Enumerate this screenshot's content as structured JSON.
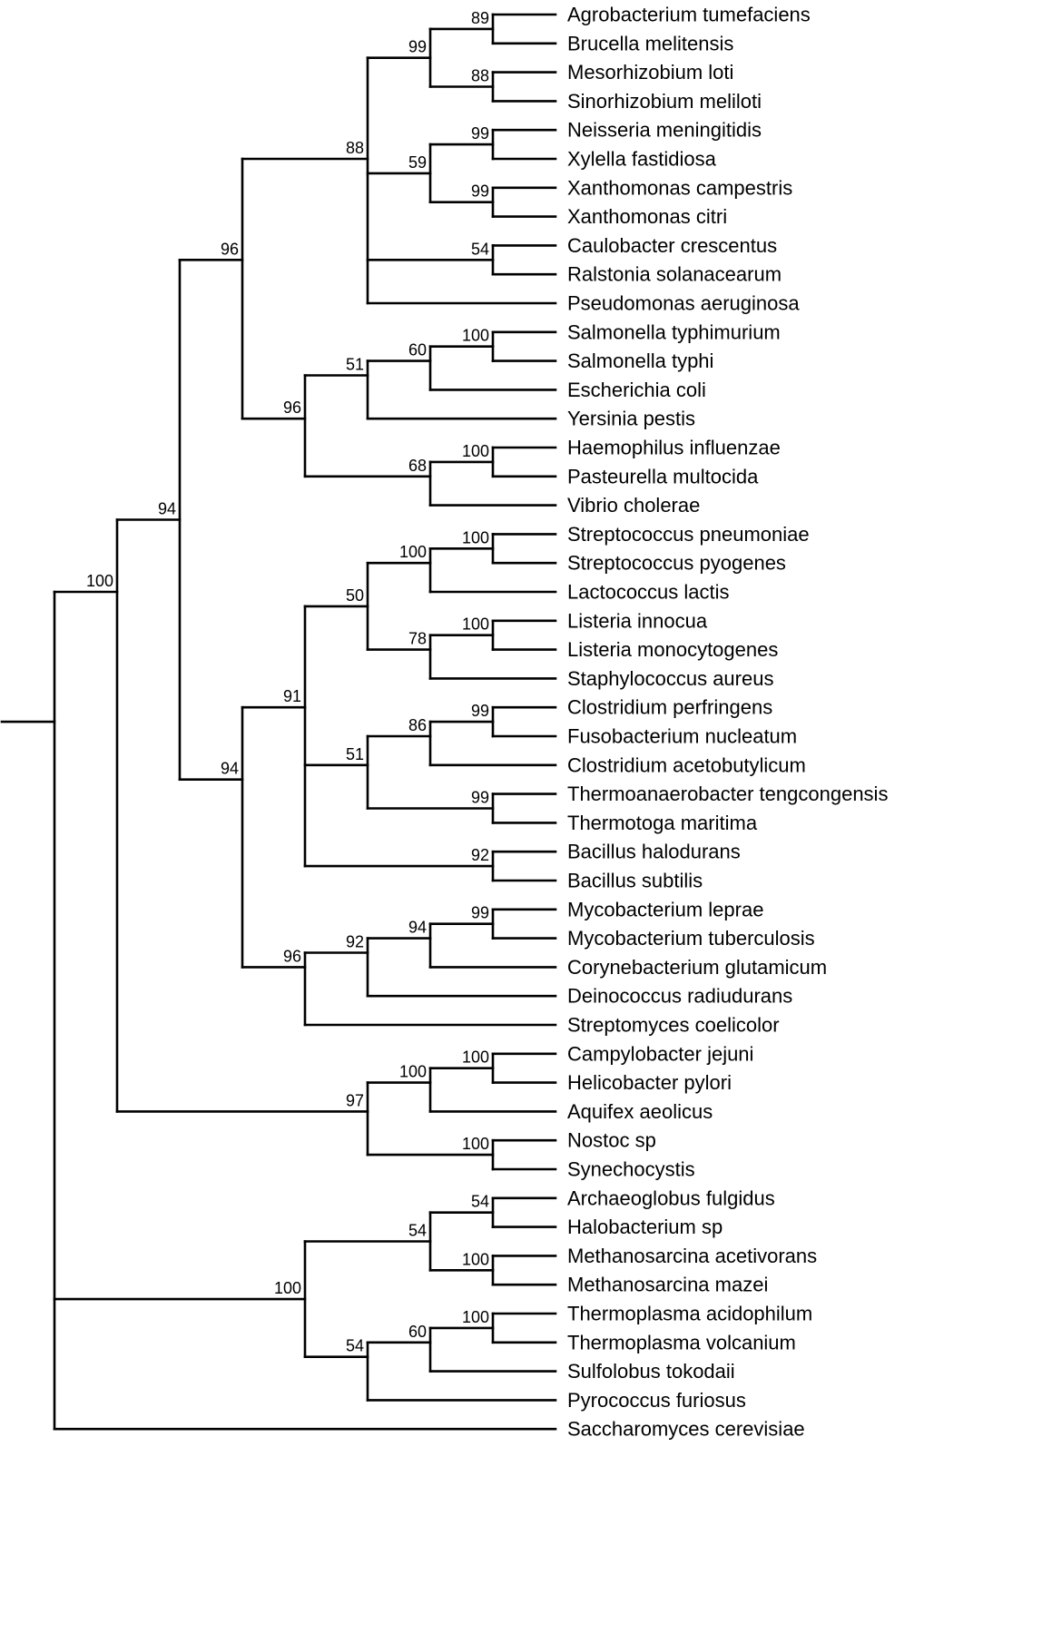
{
  "figure": {
    "type": "phylogenetic_tree",
    "background_color": "#ffffff",
    "line_color": "#000000",
    "text_color": "#000000"
  },
  "tree": {
    "children": [
      {
        "support": "100",
        "children": [
          {
            "support": "94",
            "children": [
              {
                "support": "96",
                "children": [
                  {
                    "support": "88",
                    "children": [
                      {
                        "support": "99",
                        "children": [
                          {
                            "support": "89",
                            "children": [
                              {
                                "name": "Agrobacterium tumefaciens"
                              },
                              {
                                "name": "Brucella melitensis"
                              }
                            ]
                          },
                          {
                            "support": "88",
                            "children": [
                              {
                                "name": "Mesorhizobium loti"
                              },
                              {
                                "name": "Sinorhizobium meliloti"
                              }
                            ]
                          }
                        ]
                      },
                      {
                        "support": "59",
                        "children": [
                          {
                            "support": "99",
                            "children": [
                              {
                                "name": "Neisseria meningitidis"
                              },
                              {
                                "name": "Xylella fastidiosa"
                              }
                            ]
                          },
                          {
                            "support": "99",
                            "children": [
                              {
                                "name": "Xanthomonas campestris"
                              },
                              {
                                "name": "Xanthomonas citri"
                              }
                            ]
                          }
                        ]
                      },
                      {
                        "support": "54",
                        "children": [
                          {
                            "name": "Caulobacter crescentus"
                          },
                          {
                            "name": "Ralstonia solanacearum"
                          }
                        ]
                      },
                      {
                        "name": "Pseudomonas aeruginosa"
                      }
                    ]
                  },
                  {
                    "support": "96",
                    "children": [
                      {
                        "support": "51",
                        "children": [
                          {
                            "support": "60",
                            "children": [
                              {
                                "support": "100",
                                "children": [
                                  {
                                    "name": "Salmonella typhimurium"
                                  },
                                  {
                                    "name": "Salmonella typhi"
                                  }
                                ]
                              },
                              {
                                "name": "Escherichia coli"
                              }
                            ]
                          },
                          {
                            "name": "Yersinia pestis"
                          }
                        ]
                      },
                      {
                        "support": "68",
                        "children": [
                          {
                            "support": "100",
                            "children": [
                              {
                                "name": "Haemophilus influenzae"
                              },
                              {
                                "name": "Pasteurella multocida"
                              }
                            ]
                          },
                          {
                            "name": "Vibrio cholerae"
                          }
                        ]
                      }
                    ]
                  }
                ]
              },
              {
                "support": "94",
                "children": [
                  {
                    "support": "91",
                    "children": [
                      {
                        "support": "50",
                        "children": [
                          {
                            "support": "100",
                            "children": [
                              {
                                "support": "100",
                                "children": [
                                  {
                                    "name": "Streptococcus pneumoniae"
                                  },
                                  {
                                    "name": "Streptococcus pyogenes"
                                  }
                                ]
                              },
                              {
                                "name": "Lactococcus lactis"
                              }
                            ]
                          },
                          {
                            "support": "78",
                            "children": [
                              {
                                "support": "100",
                                "children": [
                                  {
                                    "name": "Listeria innocua"
                                  },
                                  {
                                    "name": "Listeria monocytogenes"
                                  }
                                ]
                              },
                              {
                                "name": "Staphylococcus aureus"
                              }
                            ]
                          }
                        ]
                      },
                      {
                        "support": "51",
                        "children": [
                          {
                            "support": "86",
                            "children": [
                              {
                                "support": "99",
                                "children": [
                                  {
                                    "name": "Clostridium perfringens"
                                  },
                                  {
                                    "name": "Fusobacterium nucleatum"
                                  }
                                ]
                              },
                              {
                                "name": "Clostridium acetobutylicum"
                              }
                            ]
                          },
                          {
                            "support": "99",
                            "children": [
                              {
                                "name": "Thermoanaerobacter tengcongensis"
                              },
                              {
                                "name": "Thermotoga maritima"
                              }
                            ]
                          }
                        ]
                      },
                      {
                        "support": "92",
                        "children": [
                          {
                            "name": "Bacillus halodurans"
                          },
                          {
                            "name": "Bacillus subtilis"
                          }
                        ]
                      }
                    ]
                  },
                  {
                    "support": "96",
                    "children": [
                      {
                        "support": "92",
                        "children": [
                          {
                            "support": "94",
                            "children": [
                              {
                                "support": "99",
                                "children": [
                                  {
                                    "name": "Mycobacterium leprae"
                                  },
                                  {
                                    "name": "Mycobacterium tuberculosis"
                                  }
                                ]
                              },
                              {
                                "name": "Corynebacterium glutamicum"
                              }
                            ]
                          },
                          {
                            "name": "Deinococcus radiudurans"
                          }
                        ]
                      },
                      {
                        "name": "Streptomyces coelicolor"
                      }
                    ]
                  }
                ]
              }
            ]
          },
          {
            "support": "97",
            "children": [
              {
                "support": "100",
                "children": [
                  {
                    "support": "100",
                    "children": [
                      {
                        "name": "Campylobacter jejuni"
                      },
                      {
                        "name": "Helicobacter pylori"
                      }
                    ]
                  },
                  {
                    "name": "Aquifex aeolicus"
                  }
                ]
              },
              {
                "support": "100",
                "children": [
                  {
                    "name": "Nostoc sp"
                  },
                  {
                    "name": "Synechocystis"
                  }
                ]
              }
            ]
          }
        ]
      },
      {
        "support": "100",
        "children": [
          {
            "support": "54",
            "children": [
              {
                "support": "54",
                "children": [
                  {
                    "name": "Archaeoglobus fulgidus"
                  },
                  {
                    "name": "Halobacterium sp"
                  }
                ]
              },
              {
                "support": "100",
                "children": [
                  {
                    "name": "Methanosarcina acetivorans"
                  },
                  {
                    "name": "Methanosarcina mazei"
                  }
                ]
              }
            ]
          },
          {
            "support": "54",
            "children": [
              {
                "support": "60",
                "children": [
                  {
                    "support": "100",
                    "children": [
                      {
                        "name": "Thermoplasma acidophilum"
                      },
                      {
                        "name": "Thermoplasma volcanium"
                      }
                    ]
                  },
                  {
                    "name": "Sulfolobus tokodaii"
                  }
                ]
              },
              {
                "name": "Pyrococcus furiosus"
              }
            ]
          }
        ]
      },
      {
        "name": "Saccharomyces cerevisiae"
      }
    ]
  }
}
